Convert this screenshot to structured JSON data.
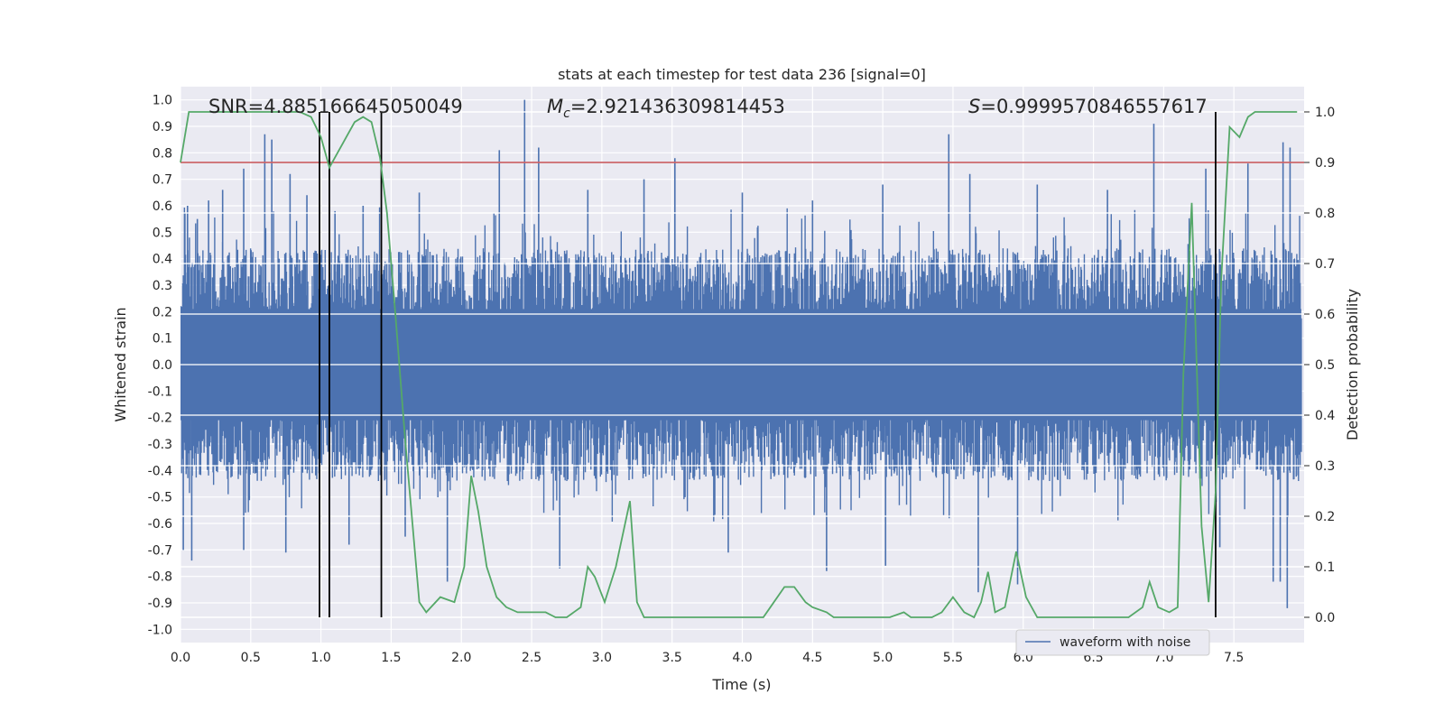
{
  "chart_data": {
    "type": "line",
    "title": "stats at each timestep for test data 236 [signal=0]",
    "xlabel": "Time (s)",
    "ylabel": "Whitened strain",
    "y2label": "Detection probability",
    "xlim": [
      0.0,
      8.0
    ],
    "ylim": [
      -1.05,
      1.05
    ],
    "y2lim": [
      -0.05,
      1.05
    ],
    "x_ticks": [
      "0.0",
      "0.5",
      "1.0",
      "1.5",
      "2.0",
      "2.5",
      "3.0",
      "3.5",
      "4.0",
      "4.5",
      "5.0",
      "5.5",
      "6.0",
      "6.5",
      "7.0",
      "7.5"
    ],
    "y_ticks": [
      "1.0",
      "0.9",
      "0.8",
      "0.7",
      "0.6",
      "0.5",
      "0.4",
      "0.3",
      "0.2",
      "0.1",
      "0.0",
      "-0.1",
      "-0.2",
      "-0.3",
      "-0.4",
      "-0.5",
      "-0.6",
      "-0.7",
      "-0.8",
      "-0.9",
      "-1.0"
    ],
    "y2_ticks": [
      "1.0",
      "0.9",
      "0.8",
      "0.7",
      "0.6",
      "0.5",
      "0.4",
      "0.3",
      "0.2",
      "0.1",
      "0.0"
    ],
    "grid": true,
    "legend_position": "lower-right",
    "annotations": {
      "snr": "SNR=4.885166645050049",
      "mc_prefix": "M",
      "mc_sub": "c",
      "mc_value": "=2.921436309814453",
      "s_prefix": "S",
      "s_value": "=0.9999570846557617"
    },
    "threshold": {
      "y2": 0.9,
      "color": "#c44e52"
    },
    "vertical_lines": [
      0.99,
      1.06,
      1.43,
      7.37
    ],
    "series": [
      {
        "name": "waveform with noise",
        "axis": "left",
        "color": "#4c72b0",
        "envelope_typical": 0.4,
        "spikes": [
          {
            "x": 0.05,
            "y": 0.6
          },
          {
            "x": 0.12,
            "y": 0.55
          },
          {
            "x": 0.2,
            "y": 0.62
          },
          {
            "x": 0.3,
            "y": 0.66
          },
          {
            "x": 0.45,
            "y": 0.74
          },
          {
            "x": 0.6,
            "y": 0.87
          },
          {
            "x": 0.65,
            "y": 0.85
          },
          {
            "x": 0.78,
            "y": 0.72
          },
          {
            "x": 0.9,
            "y": 0.64
          },
          {
            "x": 1.1,
            "y": 0.58
          },
          {
            "x": 1.3,
            "y": 0.6
          },
          {
            "x": 1.7,
            "y": 0.65
          },
          {
            "x": 2.27,
            "y": 0.81
          },
          {
            "x": 2.45,
            "y": 1.0
          },
          {
            "x": 2.55,
            "y": 0.82
          },
          {
            "x": 2.9,
            "y": 0.66
          },
          {
            "x": 3.3,
            "y": 0.7
          },
          {
            "x": 3.52,
            "y": 0.78
          },
          {
            "x": 4.0,
            "y": 0.65
          },
          {
            "x": 4.5,
            "y": 0.62
          },
          {
            "x": 5.0,
            "y": 0.68
          },
          {
            "x": 5.47,
            "y": 0.87
          },
          {
            "x": 5.62,
            "y": 0.72
          },
          {
            "x": 6.1,
            "y": 0.68
          },
          {
            "x": 6.6,
            "y": 0.66
          },
          {
            "x": 6.93,
            "y": 0.91
          },
          {
            "x": 7.3,
            "y": 0.74
          },
          {
            "x": 7.6,
            "y": 0.76
          },
          {
            "x": 7.85,
            "y": 0.84
          },
          {
            "x": 7.9,
            "y": 0.82
          },
          {
            "x": 0.02,
            "y": -0.7
          },
          {
            "x": 0.08,
            "y": -0.74
          },
          {
            "x": 0.45,
            "y": -0.7
          },
          {
            "x": 0.75,
            "y": -0.71
          },
          {
            "x": 1.2,
            "y": -0.68
          },
          {
            "x": 1.6,
            "y": -0.65
          },
          {
            "x": 1.9,
            "y": -0.82
          },
          {
            "x": 2.7,
            "y": -0.77
          },
          {
            "x": 3.9,
            "y": -0.71
          },
          {
            "x": 4.6,
            "y": -0.78
          },
          {
            "x": 5.02,
            "y": -0.76
          },
          {
            "x": 5.68,
            "y": -0.86
          },
          {
            "x": 5.96,
            "y": -0.83
          },
          {
            "x": 7.4,
            "y": -0.69
          },
          {
            "x": 7.78,
            "y": -0.82
          },
          {
            "x": 7.83,
            "y": -0.82
          },
          {
            "x": 7.88,
            "y": -0.92
          }
        ]
      },
      {
        "name": "detection probability",
        "axis": "right",
        "color": "#55a868",
        "x": [
          0.0,
          0.06,
          0.14,
          0.3,
          0.5,
          0.7,
          0.85,
          0.93,
          1.0,
          1.06,
          1.12,
          1.24,
          1.3,
          1.36,
          1.42,
          1.47,
          1.53,
          1.6,
          1.7,
          1.75,
          1.85,
          1.95,
          2.02,
          2.07,
          2.12,
          2.18,
          2.25,
          2.32,
          2.4,
          2.5,
          2.6,
          2.67,
          2.75,
          2.85,
          2.9,
          2.95,
          3.02,
          3.1,
          3.2,
          3.25,
          3.3,
          3.4,
          3.5,
          3.6,
          3.75,
          3.9,
          4.05,
          4.15,
          4.2,
          4.3,
          4.37,
          4.45,
          4.5,
          4.6,
          4.65,
          4.75,
          4.85,
          4.95,
          5.05,
          5.15,
          5.2,
          5.28,
          5.35,
          5.42,
          5.5,
          5.58,
          5.65,
          5.7,
          5.75,
          5.8,
          5.87,
          5.95,
          6.02,
          6.1,
          6.2,
          6.4,
          6.6,
          6.75,
          6.85,
          6.9,
          6.96,
          7.04,
          7.1,
          7.14,
          7.2,
          7.27,
          7.32,
          7.37,
          7.41,
          7.47,
          7.54,
          7.6,
          7.65,
          7.75,
          7.95
        ],
        "y": [
          0.9,
          1.0,
          1.0,
          1.0,
          1.0,
          1.0,
          1.0,
          0.99,
          0.95,
          0.89,
          0.92,
          0.98,
          0.99,
          0.98,
          0.91,
          0.8,
          0.6,
          0.35,
          0.03,
          0.01,
          0.04,
          0.03,
          0.1,
          0.28,
          0.21,
          0.1,
          0.04,
          0.02,
          0.01,
          0.01,
          0.01,
          0.0,
          0.0,
          0.02,
          0.1,
          0.08,
          0.03,
          0.1,
          0.23,
          0.03,
          0.0,
          0.0,
          0.0,
          0.0,
          0.0,
          0.0,
          0.0,
          0.0,
          0.02,
          0.06,
          0.06,
          0.03,
          0.02,
          0.01,
          0.0,
          0.0,
          0.0,
          0.0,
          0.0,
          0.01,
          0.0,
          0.0,
          0.0,
          0.01,
          0.04,
          0.01,
          0.0,
          0.03,
          0.09,
          0.01,
          0.02,
          0.13,
          0.04,
          0.0,
          0.0,
          0.0,
          0.0,
          0.0,
          0.02,
          0.07,
          0.02,
          0.01,
          0.02,
          0.48,
          0.82,
          0.18,
          0.03,
          0.25,
          0.67,
          0.97,
          0.95,
          0.99,
          1.0,
          1.0,
          1.0
        ]
      }
    ]
  }
}
